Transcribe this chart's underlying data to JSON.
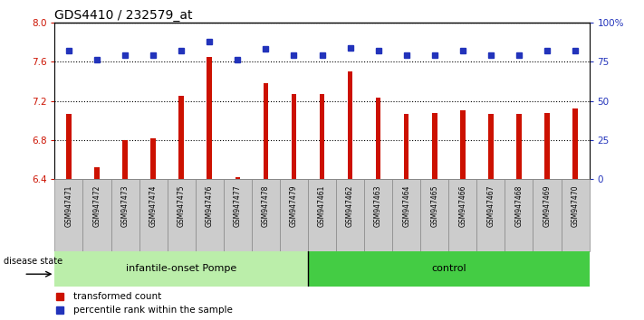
{
  "title": "GDS4410 / 232579_at",
  "samples": [
    "GSM947471",
    "GSM947472",
    "GSM947473",
    "GSM947474",
    "GSM947475",
    "GSM947476",
    "GSM947477",
    "GSM947478",
    "GSM947479",
    "GSM947461",
    "GSM947462",
    "GSM947463",
    "GSM947464",
    "GSM947465",
    "GSM947466",
    "GSM947467",
    "GSM947468",
    "GSM947469",
    "GSM947470"
  ],
  "red_values": [
    7.07,
    6.52,
    6.8,
    6.82,
    7.25,
    7.65,
    6.42,
    7.38,
    7.27,
    7.27,
    7.5,
    7.23,
    7.07,
    7.08,
    7.1,
    7.07,
    7.07,
    7.08,
    7.12
  ],
  "blue_values": [
    82,
    76,
    79,
    79,
    82,
    88,
    76,
    83,
    79,
    79,
    84,
    82,
    79,
    79,
    82,
    79,
    79,
    82,
    82
  ],
  "group1_label": "infantile-onset Pompe",
  "group2_label": "control",
  "group1_count": 9,
  "group2_count": 10,
  "ylim_left": [
    6.4,
    8.0
  ],
  "ylim_right": [
    0,
    100
  ],
  "yticks_left": [
    6.4,
    6.8,
    7.2,
    7.6,
    8.0
  ],
  "yticks_right": [
    0,
    25,
    50,
    75,
    100
  ],
  "ytick_labels_right": [
    "0",
    "25",
    "50",
    "75",
    "100%"
  ],
  "bar_color": "#cc1100",
  "dot_color": "#2233bb",
  "group1_bg": "#bbeeaa",
  "group2_bg": "#44cc44",
  "sample_bg": "#cccccc",
  "legend_label_red": "transformed count",
  "legend_label_blue": "percentile rank within the sample",
  "disease_state_label": "disease state"
}
